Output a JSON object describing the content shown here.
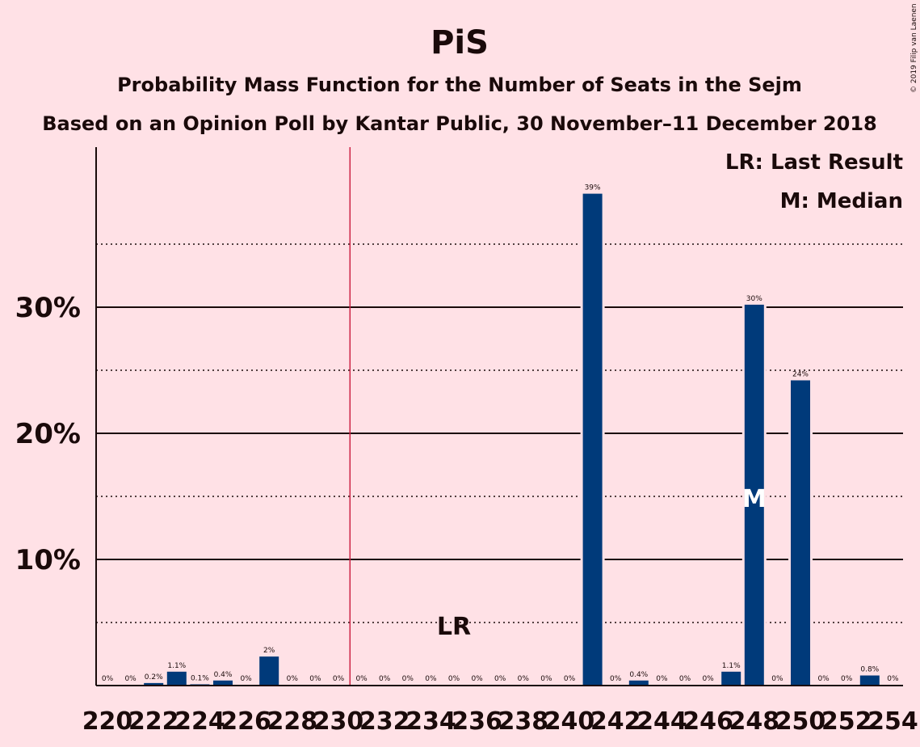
{
  "chart_data": {
    "type": "bar",
    "title": "PiS",
    "subtitle": "Probability Mass Function for the Number of Seats in the Sejm",
    "subtitle2": "Based on an Opinion Poll by Kantar Public, 30 November–11 December 2018",
    "credit": "© 2019 Filip van Laenen",
    "legend": [
      "LR: Last Result",
      "M: Median"
    ],
    "legend_position": "top-right",
    "bar_color": "#003A7A",
    "threshold_color": "#CC2244",
    "ylim": [
      0,
      40
    ],
    "yticks": [
      {
        "value": 10,
        "label": "10%"
      },
      {
        "value": 20,
        "label": "20%"
      },
      {
        "value": 30,
        "label": "30%"
      }
    ],
    "x": [
      220,
      221,
      222,
      223,
      224,
      225,
      226,
      227,
      228,
      229,
      230,
      231,
      232,
      233,
      234,
      235,
      236,
      237,
      238,
      239,
      240,
      241,
      242,
      243,
      244,
      245,
      246,
      247,
      248,
      249,
      250,
      251,
      252,
      253,
      254
    ],
    "xticks": [
      "220",
      "222",
      "224",
      "226",
      "228",
      "230",
      "232",
      "234",
      "236",
      "238",
      "240",
      "242",
      "244",
      "246",
      "248",
      "250",
      "252",
      "254"
    ],
    "values": [
      0,
      0,
      0.2,
      1.1,
      0.1,
      0.4,
      0,
      2.3,
      0,
      0,
      0,
      0,
      0,
      0,
      0,
      0,
      0,
      0,
      0,
      0,
      0,
      39,
      0,
      0.4,
      0,
      0,
      0,
      1.1,
      30.2,
      0,
      24.2,
      0,
      0,
      0.8,
      0
    ],
    "labels": [
      "0%",
      "0%",
      "0.2%",
      "1.1%",
      "0.1%",
      "0.4%",
      "0%",
      "2%",
      "0%",
      "0%",
      "0%",
      "0%",
      "0%",
      "0%",
      "0%",
      "0%",
      "0%",
      "0%",
      "0%",
      "0%",
      "0%",
      "39%",
      "0%",
      "0.4%",
      "0%",
      "0%",
      "0%",
      "1.1%",
      "30%",
      "0%",
      "24%",
      "0%",
      "0%",
      "0.8%",
      "0%"
    ],
    "majority_line": 230.5,
    "last_result": {
      "seat": 235,
      "label": "LR"
    },
    "median": {
      "seat": 248,
      "label": "M"
    }
  }
}
